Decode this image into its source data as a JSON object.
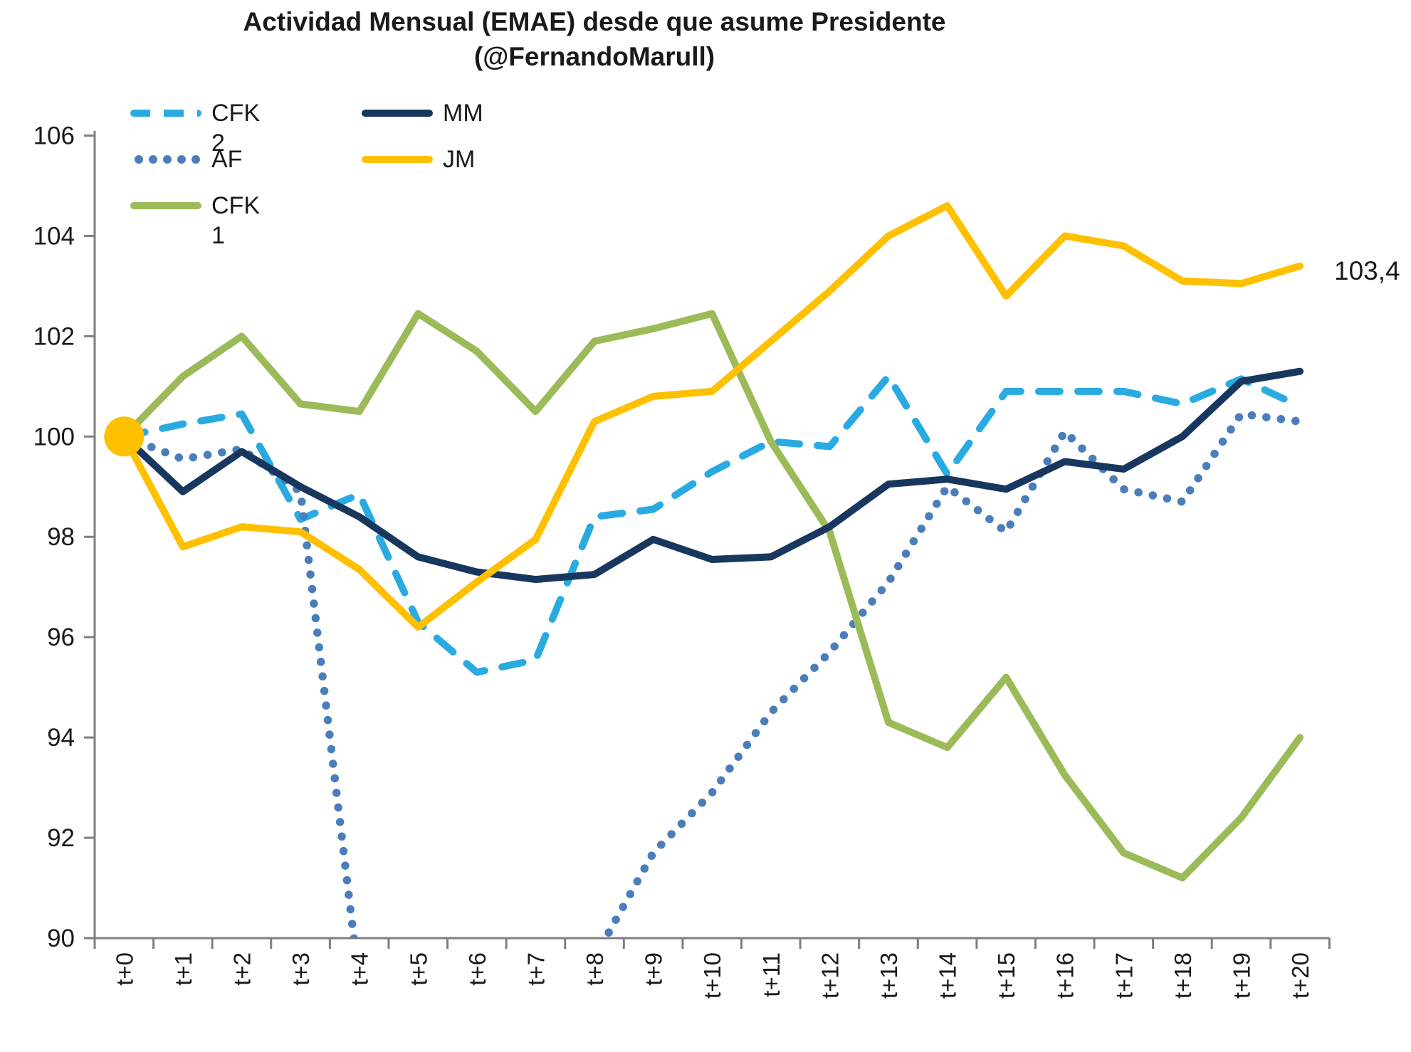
{
  "title": {
    "line1": "Actividad Mensual (EMAE) desde que asume Presidente",
    "line2": "(@FernandoMarull)"
  },
  "chart_data": {
    "type": "line",
    "title": "Actividad Mensual (EMAE) desde que asume Presidente (@FernandoMarull)",
    "x_categories": [
      "t+0",
      "t+1",
      "t+2",
      "t+3",
      "t+4",
      "t+5",
      "t+6",
      "t+7",
      "t+8",
      "t+9",
      "t+10",
      "t+11",
      "t+12",
      "t+13",
      "t+14",
      "t+15",
      "t+16",
      "t+17",
      "t+18",
      "t+19",
      "t+20"
    ],
    "ylim": [
      90,
      106
    ],
    "y_ticks": [
      90,
      92,
      94,
      96,
      98,
      100,
      102,
      104,
      106
    ],
    "grid": "off",
    "legend_position": "top-left-inside",
    "axis_color": "#7f7f7f",
    "text_color": "#1a1a1a",
    "series": [
      {
        "name": "CFK 2",
        "style": "dashed",
        "color": "#29ABE2",
        "values": [
          100,
          100.25,
          100.45,
          98.35,
          98.85,
          96.3,
          95.3,
          95.55,
          98.4,
          98.55,
          99.3,
          99.9,
          99.8,
          101.2,
          99.25,
          100.9,
          100.9,
          100.9,
          100.65,
          101.15,
          100.6
        ]
      },
      {
        "name": "AF",
        "style": "dotted",
        "color": "#4A7EBB",
        "values": [
          100,
          99.55,
          99.75,
          98.9,
          89.1,
          null,
          null,
          null,
          89.6,
          91.7,
          92.9,
          94.5,
          95.7,
          97.1,
          99.0,
          98.1,
          100.1,
          98.95,
          98.7,
          100.45,
          100.3
        ]
      },
      {
        "name": "CFK 1",
        "style": "solid",
        "color": "#9BBB59",
        "values": [
          100,
          101.2,
          102.0,
          100.65,
          100.5,
          102.45,
          101.7,
          100.5,
          101.9,
          102.15,
          102.45,
          99.9,
          98.1,
          94.3,
          93.8,
          95.2,
          93.25,
          91.7,
          91.2,
          92.4,
          94.0
        ]
      },
      {
        "name": "MM",
        "style": "solid",
        "color": "#17375E",
        "values": [
          100,
          98.9,
          99.7,
          99.0,
          98.4,
          97.6,
          97.3,
          97.15,
          97.25,
          97.95,
          97.55,
          97.6,
          98.2,
          99.05,
          99.15,
          98.95,
          99.5,
          99.35,
          100.0,
          101.1,
          101.3
        ]
      },
      {
        "name": "JM",
        "style": "solid",
        "color": "#FFC000",
        "values": [
          100,
          97.8,
          98.2,
          98.1,
          97.35,
          96.2,
          97.1,
          97.95,
          100.3,
          100.8,
          100.9,
          101.9,
          102.9,
          104.0,
          104.6,
          102.8,
          104.0,
          103.8,
          103.1,
          103.05,
          103.4
        ]
      }
    ],
    "start_marker": {
      "x": "t+0",
      "value": 100,
      "color": "#FFC000"
    },
    "annotations": [
      {
        "text": "103,4",
        "series": "JM",
        "x": "t+20",
        "value": 103.4
      }
    ]
  }
}
